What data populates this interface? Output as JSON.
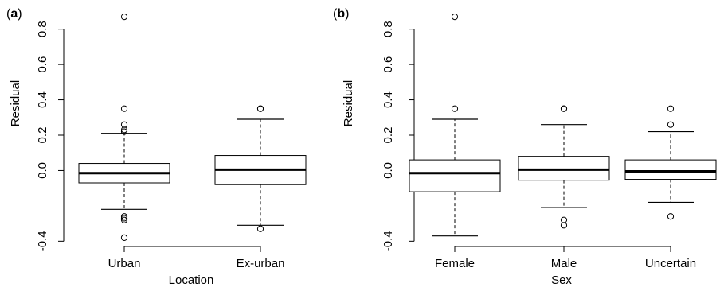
{
  "chart_data": [
    {
      "type": "box",
      "panel_label": "b",
      "panel_letter": "a",
      "xlabel": "Location",
      "ylabel": "Residual",
      "ylim": [
        -0.43,
        0.92
      ],
      "yticks": [
        -0.4,
        0.0,
        0.2,
        0.4,
        0.6,
        0.8
      ],
      "ytick_labels": [
        "-0.4",
        "0.0",
        "0.2",
        "0.4",
        "0.6",
        "0.8"
      ],
      "categories": [
        "Urban",
        "Ex-urban"
      ],
      "boxes": [
        {
          "category": "Urban",
          "whisker_low": -0.22,
          "q1": -0.07,
          "median": -0.015,
          "q3": 0.04,
          "whisker_high": 0.21,
          "outliers": [
            0.87,
            0.35,
            0.26,
            0.23,
            0.22,
            -0.26,
            -0.27,
            -0.28,
            -0.38
          ]
        },
        {
          "category": "Ex-urban",
          "whisker_low": -0.31,
          "q1": -0.08,
          "median": 0.005,
          "q3": 0.085,
          "whisker_high": 0.29,
          "outliers": [
            0.35,
            0.35,
            -0.33
          ]
        }
      ]
    },
    {
      "type": "box",
      "panel_letter": "b",
      "xlabel": "Sex",
      "ylabel": "Residual",
      "ylim": [
        -0.43,
        0.92
      ],
      "yticks": [
        -0.4,
        0.0,
        0.2,
        0.4,
        0.6,
        0.8
      ],
      "ytick_labels": [
        "-0.4",
        "0.0",
        "0.2",
        "0.4",
        "0.6",
        "0.8"
      ],
      "categories": [
        "Female",
        "Male",
        "Uncertain"
      ],
      "boxes": [
        {
          "category": "Female",
          "whisker_low": -0.37,
          "q1": -0.12,
          "median": -0.015,
          "q3": 0.06,
          "whisker_high": 0.29,
          "outliers": [
            0.87,
            0.35
          ]
        },
        {
          "category": "Male",
          "whisker_low": -0.21,
          "q1": -0.055,
          "median": 0.005,
          "q3": 0.08,
          "whisker_high": 0.26,
          "outliers": [
            0.35,
            0.35,
            -0.28,
            -0.31
          ]
        },
        {
          "category": "Uncertain",
          "whisker_low": -0.18,
          "q1": -0.05,
          "median": -0.005,
          "q3": 0.06,
          "whisker_high": 0.22,
          "outliers": [
            0.35,
            0.26,
            -0.26
          ]
        }
      ]
    }
  ]
}
